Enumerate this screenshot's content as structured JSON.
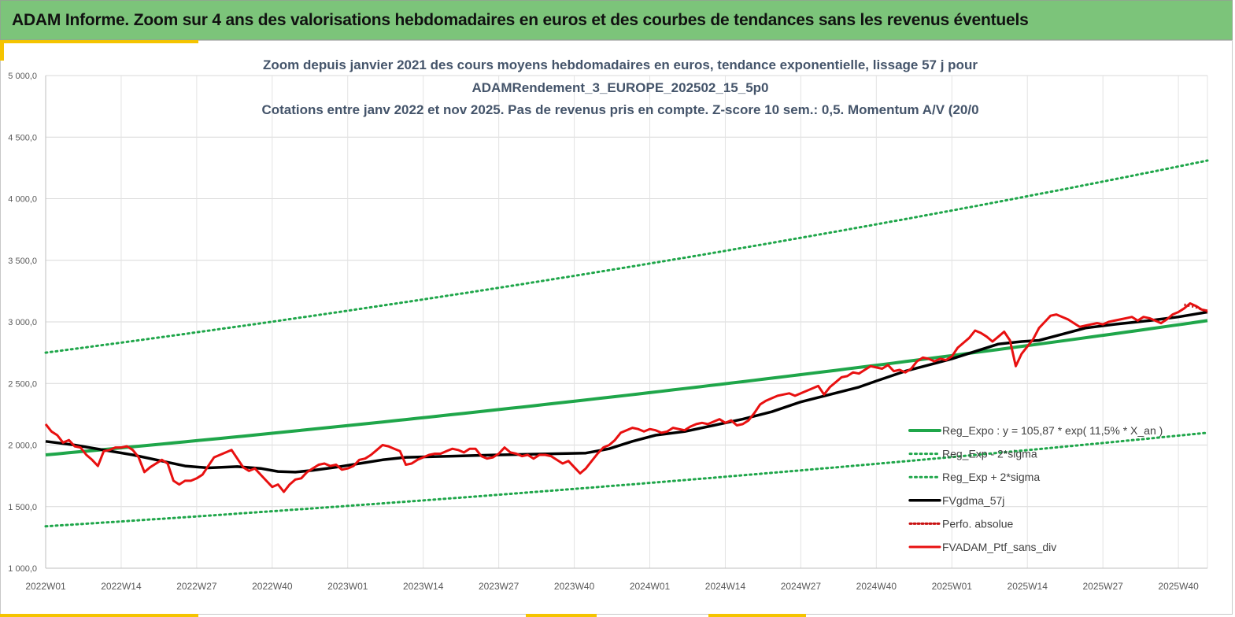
{
  "banner": {
    "title": "ADAM Informe. Zoom sur 4 ans des valorisations hebdomadaires en euros et des courbes de tendances sans les revenus éventuels"
  },
  "colors": {
    "banner": "#7cc47a",
    "accent": "#f5c400",
    "trend": "#1fa64a",
    "smooth": "#000000",
    "portfolio": "#e81010",
    "perf": "#c81010"
  },
  "chart_data": {
    "type": "line",
    "title_lines": [
      "Zoom depuis janvier 2021 des cours moyens hebdomadaires  en euros, tendance exponentielle, lissage 57 j pour",
      "ADAMRendement_3_EUROPE_202502_15_5p0",
      "Cotations  entre janv 2022 et nov 2025. Pas de revenus pris en compte. Z-score 10 sem.: 0,5. Momentum A/V (20/0"
    ],
    "ylim": [
      1000,
      5000
    ],
    "y_ticks": [
      "1 000,0",
      "1 500,0",
      "2 000,0",
      "2 500,0",
      "3 000,0",
      "3 500,0",
      "4 000,0",
      "4 500,0",
      "5 000,0"
    ],
    "y_tick_values": [
      1000,
      1500,
      2000,
      2500,
      3000,
      3500,
      4000,
      4500,
      5000
    ],
    "x_range": [
      0,
      200
    ],
    "x_ticks": [
      "2022W01",
      "2022W14",
      "2022W27",
      "2022W40",
      "2023W01",
      "2023W14",
      "2023W27",
      "2023W40",
      "2024W01",
      "2024W14",
      "2024W27",
      "2024W40",
      "2025W01",
      "2025W14",
      "2025W27",
      "2025W40"
    ],
    "x_tick_values": [
      0,
      13,
      26,
      39,
      52,
      65,
      78,
      91,
      104,
      117,
      130,
      143,
      156,
      169,
      182,
      195
    ],
    "legend": [
      {
        "key": "reg",
        "label": "Reg_Expo : y = 105,87 * exp( 11,5% *  X_an )"
      },
      {
        "key": "low",
        "label": "Reg_Exp - 2*sigma"
      },
      {
        "key": "high",
        "label": "Reg_Exp + 2*sigma"
      },
      {
        "key": "smooth",
        "label": "FVgdma_57j"
      },
      {
        "key": "perf",
        "label": "Perfo. absolue"
      },
      {
        "key": "ptf",
        "label": "FVADAM_Ptf_sans_div"
      }
    ],
    "series": [
      {
        "name": "Reg_Expo",
        "start": 1920,
        "end": 3010
      },
      {
        "name": "Reg_Exp - 2*sigma",
        "start": 1340,
        "end": 2100
      },
      {
        "name": "Reg_Exp + 2*sigma",
        "start": 2750,
        "end": 4310
      },
      {
        "name": "FVgdma_57j",
        "points": [
          [
            0,
            2030
          ],
          [
            5,
            2000
          ],
          [
            10,
            1960
          ],
          [
            15,
            1920
          ],
          [
            20,
            1870
          ],
          [
            24,
            1830
          ],
          [
            28,
            1815
          ],
          [
            33,
            1825
          ],
          [
            37,
            1810
          ],
          [
            40,
            1785
          ],
          [
            43,
            1780
          ],
          [
            46,
            1795
          ],
          [
            50,
            1820
          ],
          [
            54,
            1850
          ],
          [
            58,
            1880
          ],
          [
            62,
            1900
          ],
          [
            66,
            1905
          ],
          [
            70,
            1910
          ],
          [
            74,
            1915
          ],
          [
            78,
            1920
          ],
          [
            83,
            1925
          ],
          [
            88,
            1930
          ],
          [
            93,
            1935
          ],
          [
            97,
            1970
          ],
          [
            101,
            2030
          ],
          [
            105,
            2080
          ],
          [
            110,
            2110
          ],
          [
            115,
            2160
          ],
          [
            120,
            2210
          ],
          [
            125,
            2270
          ],
          [
            130,
            2350
          ],
          [
            135,
            2410
          ],
          [
            140,
            2470
          ],
          [
            143,
            2520
          ],
          [
            148,
            2600
          ],
          [
            152,
            2650
          ],
          [
            156,
            2700
          ],
          [
            160,
            2760
          ],
          [
            164,
            2820
          ],
          [
            168,
            2840
          ],
          [
            171,
            2850
          ],
          [
            175,
            2900
          ],
          [
            179,
            2950
          ],
          [
            184,
            2980
          ],
          [
            190,
            3010
          ],
          [
            195,
            3040
          ],
          [
            200,
            3080
          ]
        ]
      },
      {
        "name": "Perfo. absolue",
        "points": [
          [
            196,
            3140
          ],
          [
            198,
            3120
          ],
          [
            200,
            3080
          ]
        ]
      },
      {
        "name": "FVADAM_Ptf_sans_div",
        "points": [
          [
            0,
            2170
          ],
          [
            1,
            2110
          ],
          [
            2,
            2080
          ],
          [
            3,
            2020
          ],
          [
            4,
            2040
          ],
          [
            5,
            1990
          ],
          [
            6,
            1980
          ],
          [
            7,
            1920
          ],
          [
            8,
            1880
          ],
          [
            9,
            1830
          ],
          [
            10,
            1950
          ],
          [
            11,
            1960
          ],
          [
            12,
            1980
          ],
          [
            13,
            1980
          ],
          [
            14,
            1990
          ],
          [
            15,
            1960
          ],
          [
            16,
            1900
          ],
          [
            17,
            1780
          ],
          [
            18,
            1820
          ],
          [
            19,
            1850
          ],
          [
            20,
            1880
          ],
          [
            21,
            1850
          ],
          [
            22,
            1710
          ],
          [
            23,
            1680
          ],
          [
            24,
            1710
          ],
          [
            25,
            1710
          ],
          [
            26,
            1730
          ],
          [
            27,
            1760
          ],
          [
            28,
            1830
          ],
          [
            29,
            1900
          ],
          [
            30,
            1920
          ],
          [
            31,
            1940
          ],
          [
            32,
            1960
          ],
          [
            33,
            1890
          ],
          [
            34,
            1820
          ],
          [
            35,
            1790
          ],
          [
            36,
            1810
          ],
          [
            37,
            1760
          ],
          [
            38,
            1710
          ],
          [
            39,
            1660
          ],
          [
            40,
            1680
          ],
          [
            41,
            1620
          ],
          [
            42,
            1680
          ],
          [
            43,
            1720
          ],
          [
            44,
            1730
          ],
          [
            45,
            1780
          ],
          [
            46,
            1810
          ],
          [
            47,
            1840
          ],
          [
            48,
            1850
          ],
          [
            49,
            1830
          ],
          [
            50,
            1840
          ],
          [
            51,
            1800
          ],
          [
            52,
            1810
          ],
          [
            53,
            1830
          ],
          [
            54,
            1880
          ],
          [
            55,
            1890
          ],
          [
            56,
            1920
          ],
          [
            57,
            1960
          ],
          [
            58,
            2000
          ],
          [
            59,
            1990
          ],
          [
            60,
            1970
          ],
          [
            61,
            1950
          ],
          [
            62,
            1840
          ],
          [
            63,
            1850
          ],
          [
            64,
            1880
          ],
          [
            65,
            1900
          ],
          [
            66,
            1920
          ],
          [
            67,
            1930
          ],
          [
            68,
            1930
          ],
          [
            69,
            1950
          ],
          [
            70,
            1970
          ],
          [
            71,
            1960
          ],
          [
            72,
            1940
          ],
          [
            73,
            1970
          ],
          [
            74,
            1970
          ],
          [
            75,
            1910
          ],
          [
            76,
            1890
          ],
          [
            77,
            1900
          ],
          [
            78,
            1930
          ],
          [
            79,
            1980
          ],
          [
            80,
            1940
          ],
          [
            81,
            1930
          ],
          [
            82,
            1910
          ],
          [
            83,
            1920
          ],
          [
            84,
            1890
          ],
          [
            85,
            1920
          ],
          [
            86,
            1920
          ],
          [
            87,
            1910
          ],
          [
            88,
            1880
          ],
          [
            89,
            1850
          ],
          [
            90,
            1870
          ],
          [
            91,
            1820
          ],
          [
            92,
            1770
          ],
          [
            93,
            1810
          ],
          [
            94,
            1870
          ],
          [
            95,
            1930
          ],
          [
            96,
            1980
          ],
          [
            97,
            2000
          ],
          [
            98,
            2040
          ],
          [
            99,
            2100
          ],
          [
            100,
            2120
          ],
          [
            101,
            2140
          ],
          [
            102,
            2130
          ],
          [
            103,
            2110
          ],
          [
            104,
            2130
          ],
          [
            105,
            2120
          ],
          [
            106,
            2100
          ],
          [
            107,
            2110
          ],
          [
            108,
            2140
          ],
          [
            109,
            2130
          ],
          [
            110,
            2120
          ],
          [
            111,
            2150
          ],
          [
            112,
            2170
          ],
          [
            113,
            2180
          ],
          [
            114,
            2170
          ],
          [
            115,
            2190
          ],
          [
            116,
            2210
          ],
          [
            117,
            2180
          ],
          [
            118,
            2200
          ],
          [
            119,
            2160
          ],
          [
            120,
            2170
          ],
          [
            121,
            2200
          ],
          [
            122,
            2260
          ],
          [
            123,
            2330
          ],
          [
            124,
            2360
          ],
          [
            125,
            2380
          ],
          [
            126,
            2400
          ],
          [
            127,
            2410
          ],
          [
            128,
            2420
          ],
          [
            129,
            2400
          ],
          [
            130,
            2420
          ],
          [
            131,
            2440
          ],
          [
            132,
            2460
          ],
          [
            133,
            2480
          ],
          [
            134,
            2410
          ],
          [
            135,
            2470
          ],
          [
            136,
            2510
          ],
          [
            137,
            2550
          ],
          [
            138,
            2560
          ],
          [
            139,
            2590
          ],
          [
            140,
            2580
          ],
          [
            141,
            2610
          ],
          [
            142,
            2640
          ],
          [
            143,
            2630
          ],
          [
            144,
            2620
          ],
          [
            145,
            2650
          ],
          [
            146,
            2600
          ],
          [
            147,
            2610
          ],
          [
            148,
            2590
          ],
          [
            149,
            2620
          ],
          [
            150,
            2680
          ],
          [
            151,
            2710
          ],
          [
            152,
            2700
          ],
          [
            153,
            2680
          ],
          [
            154,
            2700
          ],
          [
            155,
            2690
          ],
          [
            156,
            2720
          ],
          [
            157,
            2790
          ],
          [
            158,
            2830
          ],
          [
            159,
            2870
          ],
          [
            160,
            2930
          ],
          [
            161,
            2910
          ],
          [
            162,
            2880
          ],
          [
            163,
            2840
          ],
          [
            164,
            2880
          ],
          [
            165,
            2920
          ],
          [
            166,
            2850
          ],
          [
            167,
            2640
          ],
          [
            168,
            2740
          ],
          [
            169,
            2800
          ],
          [
            170,
            2860
          ],
          [
            171,
            2950
          ],
          [
            172,
            3000
          ],
          [
            173,
            3050
          ],
          [
            174,
            3060
          ],
          [
            175,
            3040
          ],
          [
            176,
            3020
          ],
          [
            177,
            2990
          ],
          [
            178,
            2960
          ],
          [
            179,
            2970
          ],
          [
            180,
            2980
          ],
          [
            181,
            2990
          ],
          [
            182,
            2980
          ],
          [
            183,
            3000
          ],
          [
            184,
            3010
          ],
          [
            185,
            3020
          ],
          [
            186,
            3030
          ],
          [
            187,
            3040
          ],
          [
            188,
            3010
          ],
          [
            189,
            3040
          ],
          [
            190,
            3030
          ],
          [
            191,
            3010
          ],
          [
            192,
            2990
          ],
          [
            193,
            3020
          ],
          [
            194,
            3060
          ],
          [
            195,
            3080
          ],
          [
            196,
            3110
          ],
          [
            197,
            3150
          ],
          [
            198,
            3130
          ],
          [
            199,
            3100
          ],
          [
            200,
            3090
          ]
        ]
      }
    ]
  }
}
